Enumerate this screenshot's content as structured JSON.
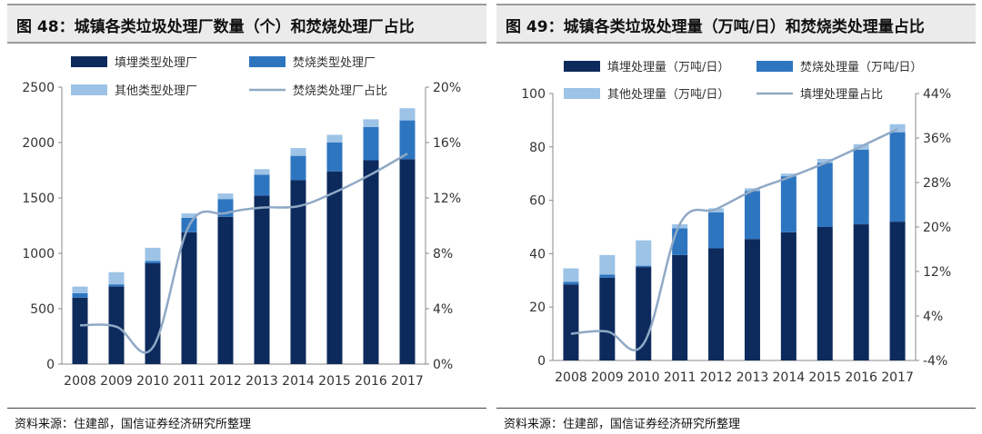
{
  "colors": {
    "landfill": "#0d2a5c",
    "incineration": "#2e75c0",
    "other": "#9dc3e6",
    "ratio_line": "#8fa9c5",
    "axis_text": "#333333"
  },
  "chart_data": [
    {
      "type": "bar",
      "stacked": true,
      "title": "图 48：城镇各类垃圾处理厂数量（个）和焚烧处理厂占比",
      "categories": [
        "2008",
        "2009",
        "2010",
        "2011",
        "2012",
        "2013",
        "2014",
        "2015",
        "2016",
        "2017"
      ],
      "series": [
        {
          "name": "填埋类型处理厂",
          "axis": "left",
          "values": [
            600,
            700,
            910,
            1190,
            1330,
            1520,
            1660,
            1740,
            1840,
            1850
          ]
        },
        {
          "name": "焚烧类型处理厂",
          "axis": "left",
          "values": [
            40,
            20,
            20,
            130,
            160,
            190,
            220,
            260,
            300,
            350
          ]
        },
        {
          "name": "其他类型处理厂",
          "axis": "left",
          "values": [
            60,
            110,
            120,
            40,
            50,
            50,
            70,
            70,
            70,
            110
          ]
        },
        {
          "name": "焚烧类处理厂占比",
          "type": "line",
          "axis": "right",
          "values": [
            2.8,
            2.7,
            1.2,
            10.0,
            10.9,
            11.3,
            11.4,
            12.4,
            13.7,
            15.2
          ]
        }
      ],
      "ylim_left": [
        0,
        2500
      ],
      "yticks_left": [
        "0",
        "500",
        "1000",
        "1500",
        "2000",
        "2500"
      ],
      "ylim_right": [
        0,
        20
      ],
      "yticks_right": [
        "0%",
        "4%",
        "8%",
        "12%",
        "16%",
        "20%"
      ],
      "legend": "top",
      "source": "资料来源：住建部，国信证券经济研究所整理"
    },
    {
      "type": "bar",
      "stacked": true,
      "title": "图 49：城镇各类垃圾处理量（万吨/日）和焚烧类处理量占比",
      "categories": [
        "2008",
        "2009",
        "2010",
        "2011",
        "2012",
        "2013",
        "2014",
        "2015",
        "2016",
        "2017"
      ],
      "series": [
        {
          "name": "填埋处理量（万吨/日）",
          "axis": "left",
          "values": [
            28.5,
            31,
            35,
            39.5,
            42,
            45.5,
            48,
            50,
            51,
            52
          ]
        },
        {
          "name": "焚烧处理量（万吨/日）",
          "axis": "left",
          "values": [
            1,
            1.2,
            0.5,
            10,
            13.5,
            18,
            21,
            24,
            28,
            33.5
          ]
        },
        {
          "name": "其他处理量（万吨/日）",
          "axis": "left",
          "values": [
            5,
            7.3,
            9.5,
            1.5,
            1.5,
            1,
            1,
            1.5,
            2,
            3
          ]
        },
        {
          "name": "填埋处理量占比",
          "type": "line",
          "axis": "right",
          "values": [
            0.8,
            1.2,
            -1.0,
            20.5,
            23.2,
            26.5,
            28.9,
            31.5,
            34.5,
            37.6
          ]
        }
      ],
      "ylim_left": [
        0,
        100
      ],
      "yticks_left": [
        "0",
        "20",
        "40",
        "60",
        "80",
        "100"
      ],
      "ylim_right": [
        -4,
        44
      ],
      "yticks_right": [
        "-4%",
        "4%",
        "12%",
        "20%",
        "28%",
        "36%",
        "44%"
      ],
      "legend": "top",
      "source": "资料来源：住建部，国信证券经济研究所整理"
    }
  ]
}
